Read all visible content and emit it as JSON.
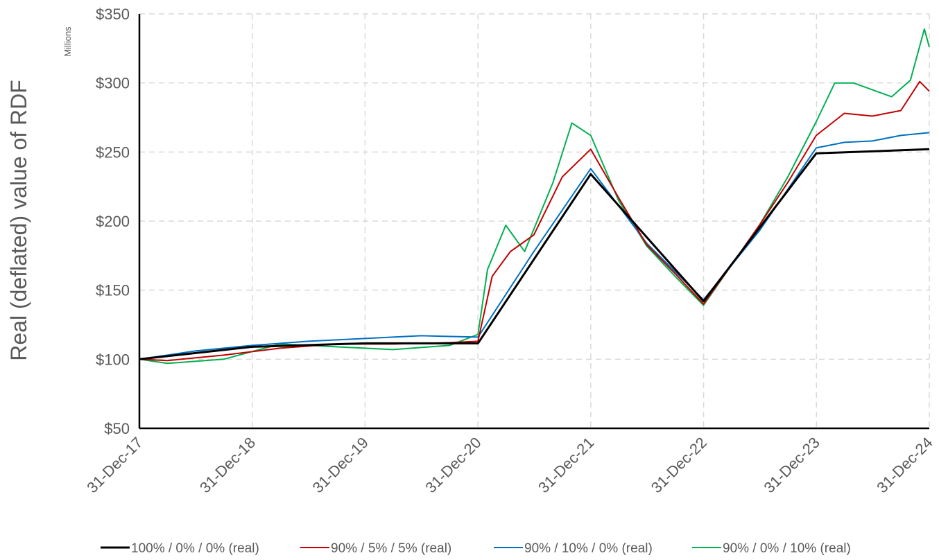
{
  "chart_data": {
    "type": "line",
    "title": "",
    "xlabel": "",
    "ylabel": "Real (deflated) value of RDF",
    "y_units_label": "Millions",
    "ylim": [
      50,
      350
    ],
    "y_ticks": [
      50,
      100,
      150,
      200,
      250,
      300,
      350
    ],
    "y_tick_labels": [
      "$50",
      "$100",
      "$150",
      "$200",
      "$250",
      "$300",
      "$350"
    ],
    "x_tick_labels": [
      "31-Dec-17",
      "31-Dec-18",
      "31-Dec-19",
      "31-Dec-20",
      "31-Dec-21",
      "31-Dec-22",
      "31-Dec-23",
      "31-Dec-24"
    ],
    "x_range": [
      "2017-12-31",
      "2024-12-31"
    ],
    "grid": true,
    "legend_position": "bottom",
    "series": [
      {
        "name": "100% / 0% / 0% (real)",
        "color": "#000000",
        "x": [
          "2017-12-31",
          "2018-12-31",
          "2019-12-31",
          "2020-12-31",
          "2021-12-31",
          "2022-12-31",
          "2023-12-31",
          "2024-12-31"
        ],
        "y": [
          100,
          109,
          111.5,
          111.5,
          234,
          142,
          249,
          252
        ]
      },
      {
        "name": "90% / 5% / 5% (real)",
        "color": "#c00000",
        "x": [
          "2017-12-31",
          "2018-03-31",
          "2018-09-30",
          "2019-03-31",
          "2019-09-30",
          "2020-03-31",
          "2020-09-30",
          "2020-12-31",
          "2021-02-15",
          "2021-04-15",
          "2021-06-30",
          "2021-09-30",
          "2021-12-31",
          "2022-03-31",
          "2022-06-30",
          "2022-09-30",
          "2022-12-31",
          "2023-03-31",
          "2023-06-30",
          "2023-09-30",
          "2023-12-31",
          "2024-03-31",
          "2024-06-30",
          "2024-09-30",
          "2024-11-30",
          "2024-12-31"
        ],
        "y": [
          100,
          99,
          103,
          108,
          111,
          111,
          112,
          113,
          160,
          178,
          190,
          232,
          252,
          217,
          183,
          162,
          140,
          168,
          197,
          228,
          262,
          278,
          276,
          280,
          301,
          294
        ]
      },
      {
        "name": "90% / 10% / 0% (real)",
        "color": "#0070c0",
        "x": [
          "2017-12-31",
          "2018-06-30",
          "2018-12-31",
          "2019-06-30",
          "2019-12-31",
          "2020-06-30",
          "2020-12-31",
          "2021-06-30",
          "2021-12-31",
          "2022-06-30",
          "2022-12-31",
          "2023-06-30",
          "2023-12-31",
          "2024-03-31",
          "2024-06-30",
          "2024-09-30",
          "2024-12-31"
        ],
        "y": [
          100,
          106,
          110,
          113,
          115,
          117,
          116,
          178,
          238,
          184,
          143,
          193,
          253,
          257,
          258,
          262,
          264
        ]
      },
      {
        "name": "90% / 0% / 10% (real)",
        "color": "#00b050",
        "x": [
          "2017-12-31",
          "2018-03-31",
          "2018-09-30",
          "2019-03-31",
          "2019-09-30",
          "2020-03-31",
          "2020-09-30",
          "2020-12-31",
          "2021-01-31",
          "2021-03-31",
          "2021-05-31",
          "2021-08-31",
          "2021-10-31",
          "2021-12-31",
          "2022-03-31",
          "2022-06-30",
          "2022-09-30",
          "2022-12-31",
          "2023-03-31",
          "2023-06-30",
          "2023-09-30",
          "2023-12-31",
          "2024-02-29",
          "2024-04-30",
          "2024-06-30",
          "2024-08-31",
          "2024-10-31",
          "2024-12-15",
          "2024-12-31"
        ],
        "y": [
          100,
          97,
          100,
          111,
          109,
          107,
          110,
          118,
          165,
          197,
          178,
          228,
          271,
          262,
          215,
          182,
          160,
          139,
          168,
          197,
          232,
          272,
          300,
          300,
          295,
          290,
          302,
          339,
          326
        ]
      }
    ]
  }
}
